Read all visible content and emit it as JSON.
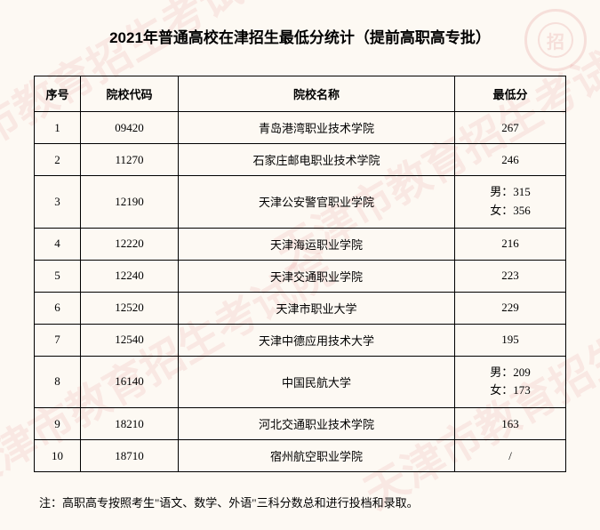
{
  "title": "2021年普通高校在津招生最低分统计（提前高职高专批）",
  "watermark_text": "天津市教育招生考试院",
  "stamp_text": "招",
  "columns": {
    "idx": "序号",
    "code": "院校代码",
    "name": "院校名称",
    "score": "最低分"
  },
  "rows": [
    {
      "idx": "1",
      "code": "09420",
      "name": "青岛港湾职业技术学院",
      "score": "267"
    },
    {
      "idx": "2",
      "code": "11270",
      "name": "石家庄邮电职业技术学院",
      "score": "246"
    },
    {
      "idx": "3",
      "code": "12190",
      "name": "天津公安警官职业学院",
      "score": "男：315\n女：356"
    },
    {
      "idx": "4",
      "code": "12220",
      "name": "天津海运职业学院",
      "score": "216"
    },
    {
      "idx": "5",
      "code": "12240",
      "name": "天津交通职业学院",
      "score": "223"
    },
    {
      "idx": "6",
      "code": "12520",
      "name": "天津市职业大学",
      "score": "229"
    },
    {
      "idx": "7",
      "code": "12540",
      "name": "天津中德应用技术大学",
      "score": "195"
    },
    {
      "idx": "8",
      "code": "16140",
      "name": "中国民航大学",
      "score": "男：209\n女：173"
    },
    {
      "idx": "9",
      "code": "18210",
      "name": "河北交通职业技术学院",
      "score": "163"
    },
    {
      "idx": "10",
      "code": "18710",
      "name": "宿州航空职业学院",
      "score": "/"
    }
  ],
  "note": "注：高职高专按照考生\"语文、数学、外语\"三科分数总和进行投档和录取。",
  "style": {
    "page_bg": "#fdf9f3",
    "border_color": "#000000",
    "text_color": "#000000",
    "watermark_color": "rgba(200,40,40,0.08)",
    "title_fontsize": 17,
    "cell_fontsize": 13
  }
}
